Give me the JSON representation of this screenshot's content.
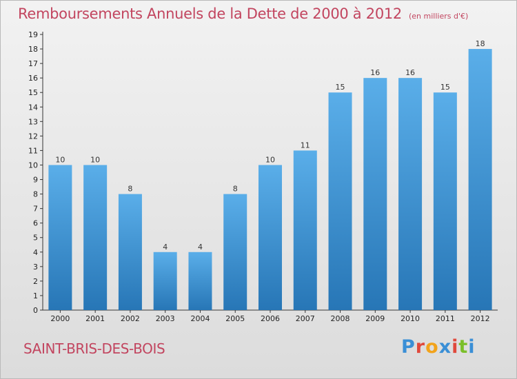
{
  "title": "Remboursements Annuels de la Dette de 2000 à 2012",
  "unit": "(en milliers d'€)",
  "commune": "SAINT-BRIS-DES-BOIS",
  "logo": {
    "letters": [
      "P",
      "r",
      "o",
      "x",
      "i",
      "t",
      "i"
    ],
    "colors": [
      "#3a8fd6",
      "#e0493c",
      "#f2a31b",
      "#3a8fd6",
      "#e0493c",
      "#7bbf2a",
      "#3a8fd6"
    ]
  },
  "colors": {
    "bar_top": "#5aaee9",
    "bar_bottom": "#2776b6",
    "accent": "#c2455f"
  },
  "chart_data": {
    "type": "bar",
    "categories": [
      "2000",
      "2001",
      "2002",
      "2003",
      "2004",
      "2005",
      "2006",
      "2007",
      "2008",
      "2009",
      "2010",
      "2011",
      "2012"
    ],
    "values": [
      10,
      10,
      8,
      4,
      4,
      8,
      10,
      11,
      15,
      16,
      16,
      15,
      18
    ],
    "value_labels": [
      "10",
      "10",
      "8",
      "4",
      "4",
      "8",
      "10",
      "11",
      "15",
      "16",
      "16",
      "15",
      "18"
    ],
    "yticks": [
      "0",
      "1",
      "2",
      "3",
      "4",
      "5",
      "6",
      "7",
      "8",
      "9",
      "10",
      "11",
      "12",
      "13",
      "14",
      "15",
      "16",
      "17",
      "18",
      "19"
    ],
    "ylim": [
      0,
      19
    ],
    "grid": false
  }
}
